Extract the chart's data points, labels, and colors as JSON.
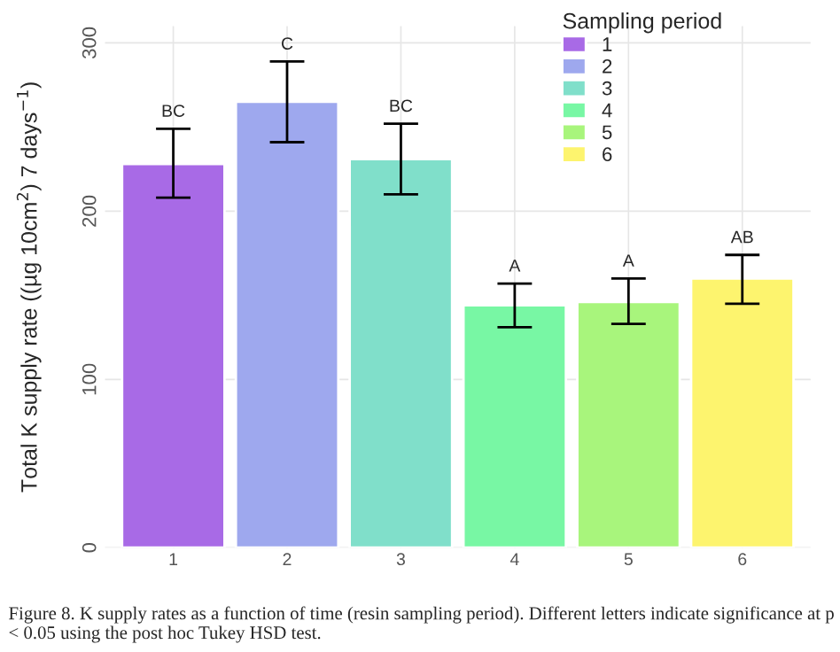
{
  "chart_data": {
    "type": "bar",
    "ylabel": "Total K supply rate ((µg 10cm$^{2}$) 7 days$^{−1}$)",
    "legend_title": "Sampling period",
    "categories": [
      "1",
      "2",
      "3",
      "4",
      "5",
      "6"
    ],
    "series": [
      {
        "name": "1",
        "color": "#a86ae6",
        "values": [
          228,
          null,
          null,
          null,
          null,
          null
        ],
        "errors": [
          [
            208,
            249
          ],
          null,
          null,
          null,
          null,
          null
        ],
        "value_labels": [
          "BC",
          null,
          null,
          null,
          null,
          null
        ]
      },
      {
        "name": "2",
        "color": "#9ea8ee",
        "values": [
          null,
          265,
          null,
          null,
          null,
          null
        ],
        "errors": [
          null,
          [
            241,
            289
          ],
          null,
          null,
          null,
          null
        ],
        "value_labels": [
          null,
          "C",
          null,
          null,
          null,
          null
        ]
      },
      {
        "name": "3",
        "color": "#80dfca",
        "values": [
          null,
          null,
          231,
          null,
          null,
          null
        ],
        "errors": [
          null,
          null,
          [
            210,
            252
          ],
          null,
          null,
          null
        ],
        "value_labels": [
          null,
          null,
          "BC",
          null,
          null,
          null
        ]
      },
      {
        "name": "4",
        "color": "#78f7a4",
        "values": [
          null,
          null,
          null,
          144,
          null,
          null
        ],
        "errors": [
          null,
          null,
          null,
          [
            131,
            157
          ],
          null,
          null
        ],
        "value_labels": [
          null,
          null,
          null,
          "A",
          null,
          null
        ]
      },
      {
        "name": "5",
        "color": "#a8f57c",
        "values": [
          null,
          null,
          null,
          null,
          146,
          null
        ],
        "errors": [
          null,
          null,
          null,
          null,
          [
            133,
            160
          ],
          null
        ],
        "value_labels": [
          null,
          null,
          null,
          null,
          "A",
          null
        ]
      },
      {
        "name": "6",
        "color": "#fdf46e",
        "values": [
          null,
          null,
          null,
          null,
          null,
          160
        ],
        "errors": [
          null,
          null,
          null,
          null,
          null,
          [
            145,
            174
          ]
        ],
        "value_labels": [
          null,
          null,
          null,
          null,
          null,
          "AB"
        ]
      }
    ],
    "ylim": [
      0,
      310
    ],
    "yticks": [
      0,
      100,
      200,
      300
    ],
    "grid": true,
    "legend": "top right",
    "annotations": [
      "Figure 8. K supply rates as a function of time (resin sampling period). Different letters indicate significance at p < 0.05 using the post hoc Tukey HSD test."
    ]
  }
}
